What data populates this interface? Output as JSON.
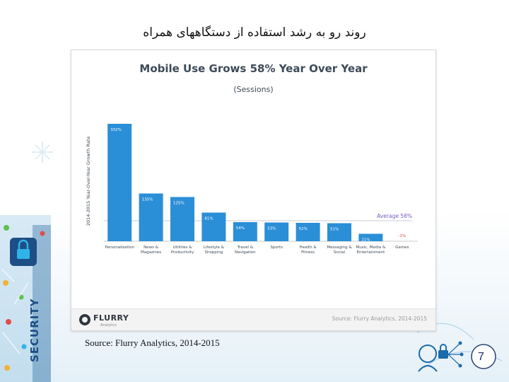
{
  "slide": {
    "title": "روند رو به رشد استفاده از دستگاههای همراه",
    "source_caption": "Source: Flurry Analytics, 2014-2015",
    "page_number": "7",
    "side_label": "SECURITY"
  },
  "figure": {
    "logo_text": "FLURRY",
    "logo_sub": "Analytics",
    "source": "Source: Flurry Analytics, 2014-2015"
  },
  "colors": {
    "bar": "#2b8fd8",
    "average_line": "#c8cdd4",
    "average_label": "#7a5cc0",
    "negative_label": "#d93a3a",
    "title_text": "#3d4a57"
  },
  "icons": [
    "security-lock-icon",
    "user-network-icon",
    "flurry-logo-icon"
  ],
  "chart_data": {
    "type": "bar",
    "title": "Mobile Use Grows 58% Year Over Year",
    "subtitle": "(Sessions)",
    "ylabel": "2014-2015 Year-Over-Year Growth Rate",
    "categories": [
      "Personalization",
      "News & Magazines",
      "Utilities & Productivity",
      "Lifestyle & Shopping",
      "Travel & Navigation",
      "Sports",
      "Health & Fitness",
      "Messaging & Social",
      "Music, Media & Entertainment",
      "Games"
    ],
    "category_lines": [
      [
        "Personalization"
      ],
      [
        "News &",
        "Magazines"
      ],
      [
        "Utilities &",
        "Productivity"
      ],
      [
        "Lifestyle &",
        "Shopping"
      ],
      [
        "Travel &",
        "Navigation"
      ],
      [
        "Sports"
      ],
      [
        "Health &",
        "Fitness"
      ],
      [
        "Messaging &",
        "Social"
      ],
      [
        "Music, Media &",
        "Entertainment"
      ],
      [
        "Games"
      ]
    ],
    "values": [
      332,
      135,
      125,
      81,
      54,
      53,
      52,
      51,
      21,
      -1
    ],
    "value_labels": [
      "332%",
      "135%",
      "125%",
      "81%",
      "54%",
      "53%",
      "52%",
      "51%",
      "21%",
      "-1%"
    ],
    "average": 58,
    "average_label": "Average 58%",
    "ylim": [
      -10,
      340
    ],
    "grid": false
  }
}
